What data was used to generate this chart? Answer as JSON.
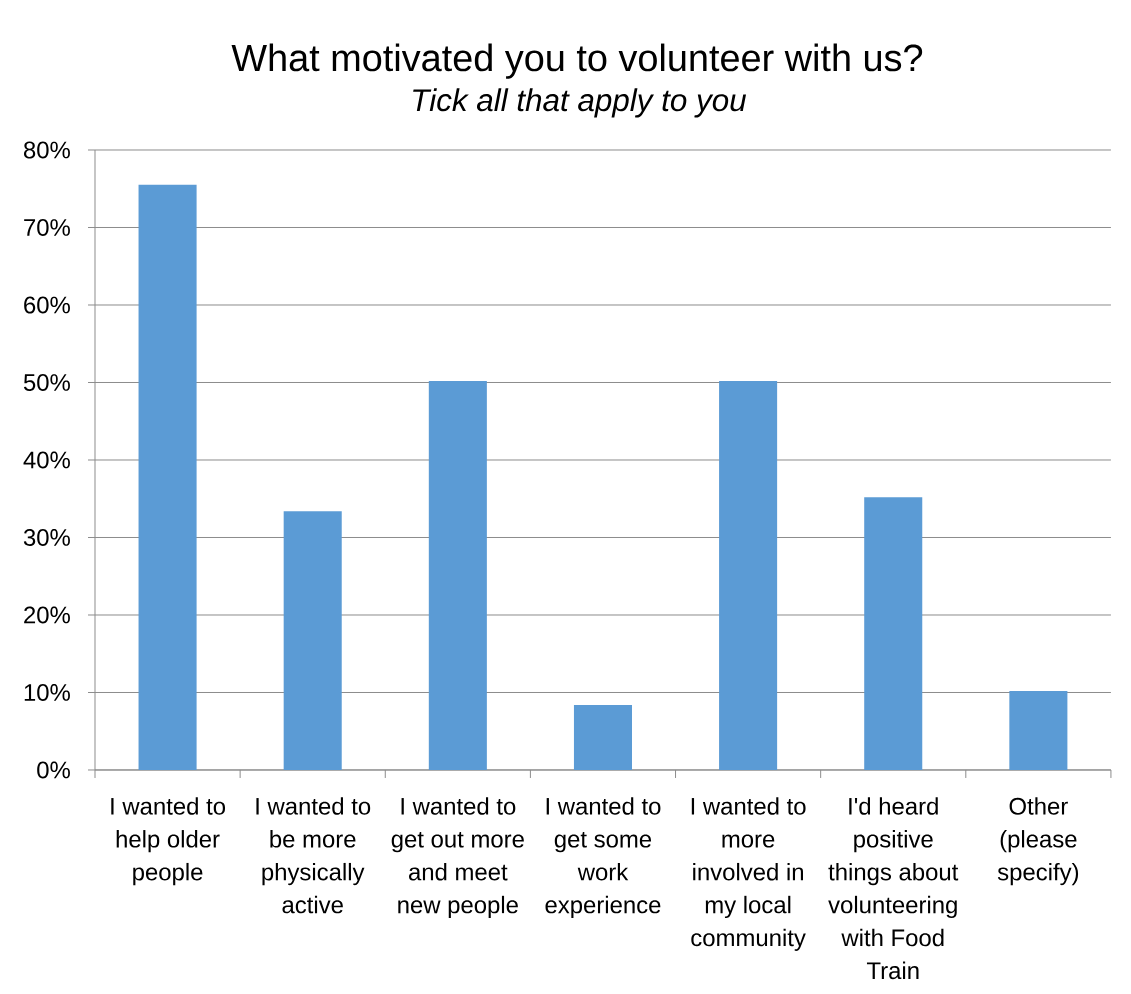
{
  "chart_data": {
    "type": "bar",
    "title": "What motivated you to volunteer with us?",
    "subtitle": "Tick all that apply to you",
    "categories": [
      "I wanted to help older people",
      "I wanted to be more physically active",
      "I wanted to get out more and meet new people",
      "I wanted to get some work experience",
      "I wanted to more involved in my local community",
      "I'd heard positive things about volunteering with Food Train",
      "Other (please specify)"
    ],
    "values": [
      75.5,
      33.4,
      50.2,
      8.4,
      50.2,
      35.2,
      10.2
    ],
    "color": "#5b9bd5",
    "ylim": [
      0,
      80
    ],
    "yticks": [
      {
        "value": 0,
        "label": "0%"
      },
      {
        "value": 10,
        "label": "10%"
      },
      {
        "value": 20,
        "label": "20%"
      },
      {
        "value": 30,
        "label": "30%"
      },
      {
        "value": 40,
        "label": "40%"
      },
      {
        "value": 50,
        "label": "50%"
      },
      {
        "value": 60,
        "label": "60%"
      },
      {
        "value": 70,
        "label": "70%"
      },
      {
        "value": 80,
        "label": "80%"
      }
    ],
    "grid": "y"
  }
}
